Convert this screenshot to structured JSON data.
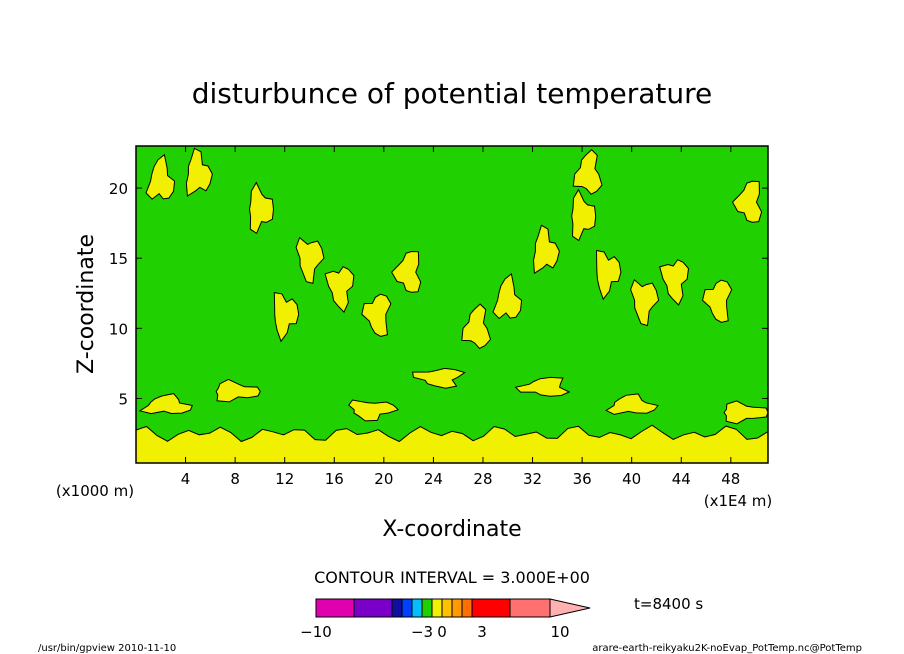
{
  "chart_data": {
    "type": "heatmap",
    "title": "disturbunce of potential temperature",
    "xlabel": "X-coordinate",
    "ylabel": "Z-coordinate",
    "x_unit_label": "(x1E4 m)",
    "y_unit_label": "(x1000 m)",
    "xlim": [
      0,
      51
    ],
    "ylim": [
      0.4,
      23
    ],
    "x_ticks": [
      "4",
      "8",
      "12",
      "16",
      "20",
      "24",
      "28",
      "32",
      "36",
      "40",
      "44",
      "48"
    ],
    "y_ticks": [
      "5",
      "10",
      "15",
      "20"
    ],
    "contour_interval_label": "CONTOUR INTERVAL = 3.000E+00",
    "colorbar": {
      "tick_labels": [
        "−10",
        "−3",
        "0",
        "3",
        "10"
      ],
      "time_label": "t=8400 s",
      "colors": [
        "#e000b0",
        "#7a00c8",
        "#1010a0",
        "#0040ff",
        "#00c0ff",
        "#20d000",
        "#f0f000",
        "#ffc000",
        "#ff9a00",
        "#ff7000",
        "#ff0000",
        "#ff7070",
        "#ffb0b0"
      ]
    },
    "field_colors": {
      "background": "#20d000",
      "positive": "#f0f000",
      "contour": "#000000"
    },
    "surface_layer": {
      "z_top": 2.5,
      "value_class": "positive"
    },
    "shallow_positive_patches": [
      {
        "x": 2.5,
        "z": 4.5
      },
      {
        "x": 8,
        "z": 5.5
      },
      {
        "x": 19,
        "z": 4.2
      },
      {
        "x": 24.5,
        "z": 6.5
      },
      {
        "x": 33,
        "z": 5.8
      },
      {
        "x": 40,
        "z": 4.5
      },
      {
        "x": 49,
        "z": 4.0
      }
    ],
    "mid_positive_patches": [
      {
        "x": 2,
        "z": 20.5
      },
      {
        "x": 5,
        "z": 21
      },
      {
        "x": 10,
        "z": 18.5
      },
      {
        "x": 12,
        "z": 11
      },
      {
        "x": 14,
        "z": 15
      },
      {
        "x": 16.5,
        "z": 13
      },
      {
        "x": 19.5,
        "z": 11
      },
      {
        "x": 22,
        "z": 14
      },
      {
        "x": 27.5,
        "z": 10
      },
      {
        "x": 30,
        "z": 12
      },
      {
        "x": 33,
        "z": 15.5
      },
      {
        "x": 36,
        "z": 18
      },
      {
        "x": 38,
        "z": 14
      },
      {
        "x": 41,
        "z": 12
      },
      {
        "x": 43.5,
        "z": 13.5
      },
      {
        "x": 47,
        "z": 12
      },
      {
        "x": 49.5,
        "z": 19
      },
      {
        "x": 36.5,
        "z": 21
      }
    ],
    "footer_left": "/usr/bin/gpview 2010-11-10",
    "footer_right": "arare-earth-reikyaku2K-noEvap_PotTemp.nc@PotTemp"
  }
}
